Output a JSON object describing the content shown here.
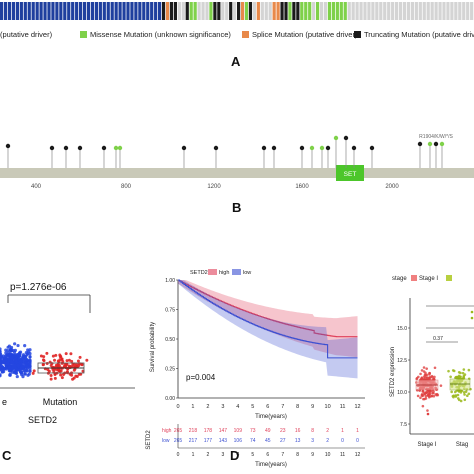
{
  "colors": {
    "track_blue": "#1f3f9e",
    "missense_green": "#7fd14a",
    "splice_orange": "#e8894a",
    "truncating_black": "#1a1a1a",
    "empty_grey": "#d4d4d4",
    "protein_bar": "#c9c9b8",
    "set_domain": "#4cc62a",
    "km_high": "#e0405a",
    "km_low": "#3b4fd1",
    "boxplot_blue": "#2446e0",
    "boxplot_red": "#e02424"
  },
  "panel_a": {
    "letter": "A",
    "legend": [
      {
        "label": "(putative driver)",
        "color": "#1f3f9e"
      },
      {
        "label": "Missense Mutation (unknown significance)",
        "color": "#7fd14a"
      },
      {
        "label": "Splice Mutation (putative driver)",
        "color": "#e8894a"
      },
      {
        "label": "Truncating Mutation (putative drive",
        "color": "#1a1a1a"
      }
    ]
  },
  "panel_b": {
    "letter": "B",
    "domain_label": "SET",
    "annotation": "R1904/K/W/*/S",
    "axis_ticks": [
      "400",
      "800",
      "1200",
      "1600",
      "2000"
    ]
  },
  "panel_c": {
    "letter": "C",
    "pvalue": "p=1.276e-06",
    "xlabel": "SETD2",
    "categories": [
      "e",
      "Mutation"
    ]
  },
  "panel_d": {
    "letter": "D",
    "legend_title": "SETD2",
    "legend_high": "high",
    "legend_low": "low",
    "ylabel": "Survival probability",
    "xlabel": "Time(years)",
    "pvalue": "p=0.004",
    "risk_label": "SETD2",
    "risk_high_label": "high",
    "risk_low_label": "low",
    "risk_high": [
      "265",
      "218",
      "178",
      "147",
      "109",
      "73",
      "49",
      "23",
      "16",
      "8",
      "2",
      "1",
      "1"
    ],
    "risk_low": [
      "265",
      "217",
      "177",
      "143",
      "106",
      "74",
      "45",
      "27",
      "13",
      "3",
      "2",
      "0",
      "0"
    ],
    "yticks": [
      "1.00",
      "0.75",
      "0.50",
      "0.25",
      "0.00"
    ],
    "xticks": [
      "0",
      "1",
      "2",
      "3",
      "4",
      "5",
      "6",
      "7",
      "8",
      "9",
      "10",
      "11",
      "12"
    ]
  },
  "panel_e": {
    "legend_title": "stage",
    "legend_stage1": "Stage I",
    "ylabel": "SETD2 expression",
    "yticks": [
      "15.0",
      "12.5",
      "10.0",
      "7.5"
    ],
    "pvalue_small": "0.37",
    "categories": [
      "Stage I",
      "Stag"
    ]
  }
}
